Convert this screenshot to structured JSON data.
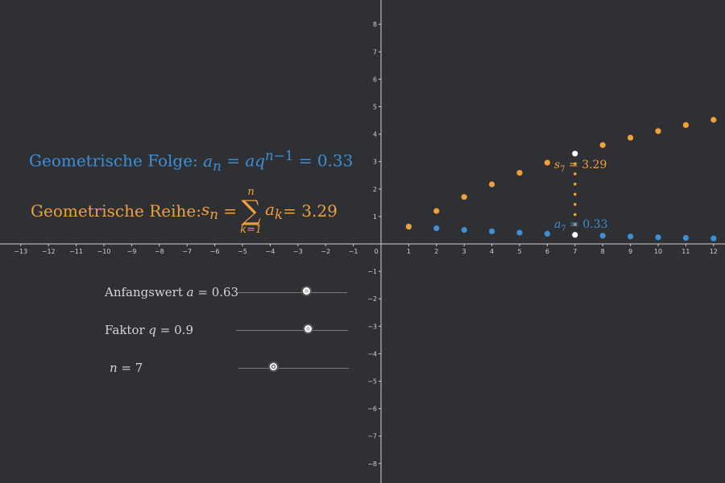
{
  "chart_data": {
    "type": "scatter",
    "xlim": [
      -14,
      12.4
    ],
    "ylim": [
      -8.5,
      8.5
    ],
    "x_ticks": [
      -13,
      -12,
      -11,
      -10,
      -9,
      -8,
      -7,
      -6,
      -5,
      -4,
      -3,
      -2,
      -1,
      0,
      1,
      2,
      3,
      4,
      5,
      6,
      7,
      8,
      9,
      10,
      11,
      12
    ],
    "y_ticks": [
      -8,
      -7,
      -6,
      -5,
      -4,
      -3,
      -2,
      -1,
      1,
      2,
      3,
      4,
      5,
      6,
      7,
      8
    ],
    "grid": false,
    "series": [
      {
        "color": "#3d8fd6",
        "x": [
          1,
          2,
          3,
          4,
          5,
          6,
          8,
          9,
          10,
          11,
          12
        ],
        "y": [
          0.63,
          0.57,
          0.51,
          0.46,
          0.41,
          0.37,
          0.3,
          0.27,
          0.24,
          0.22,
          0.2
        ]
      },
      {
        "color": "#f2a03a",
        "x": [
          1,
          2,
          3,
          4,
          5,
          6,
          8,
          9,
          10,
          11,
          12
        ],
        "y": [
          0.63,
          1.2,
          1.71,
          2.17,
          2.59,
          2.96,
          3.6,
          3.87,
          4.11,
          4.33,
          4.52
        ]
      }
    ],
    "highlight": {
      "color": "#ffffff",
      "x": 7,
      "a_value": 0.33,
      "s_value": 3.29,
      "dotted_color": "#f2a03a"
    }
  },
  "formulas": {
    "folge_prefix": "Geometrische Folge: ",
    "folge_value": " = 0.33",
    "reihe_prefix": "Geometrische Reihe: ",
    "reihe_value": " = 3.29"
  },
  "point_labels": {
    "s7_value": " = 3.29",
    "a7_value": " = 0.33"
  },
  "sliders": [
    {
      "label_prefix": "Anfangswert ",
      "var": "a",
      "value_text": " = 0.63",
      "min": 0,
      "max": 1,
      "value": 0.63
    },
    {
      "label_prefix": "Faktor ",
      "var": "q",
      "value_text": " = 0.9",
      "min": 0,
      "max": 1.4,
      "value": 0.9
    },
    {
      "label_prefix": "",
      "var": "n",
      "value_text": " = 7",
      "min": 1,
      "max": 20,
      "value": 7
    }
  ],
  "colors": {
    "background": "#2f3033",
    "axis": "#d0d0d0",
    "folge": "#3d8fd6",
    "reihe": "#f2a03a"
  }
}
